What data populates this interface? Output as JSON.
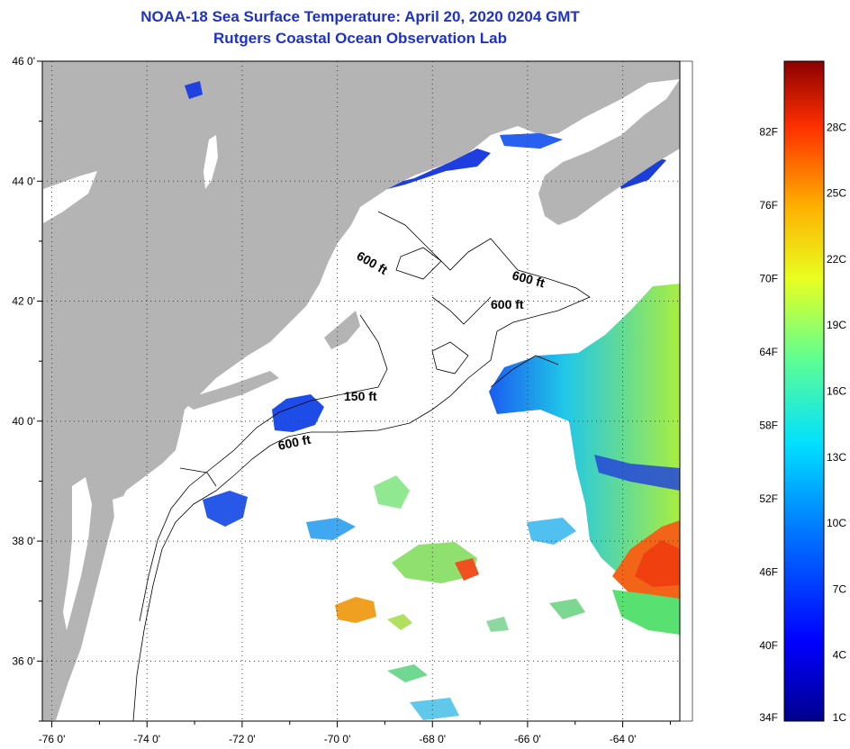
{
  "title": "NOAA-18 Sea Surface Temperature:  April 20, 2020 0204 GMT",
  "subtitle": "Rutgers Coastal Ocean Observation Lab",
  "lat_ticks": [
    "46 0'",
    "44 0'",
    "42 0'",
    "40 0'",
    "38 0'",
    "36 0'"
  ],
  "lat_values": [
    46,
    44,
    42,
    40,
    38,
    36
  ],
  "lon_ticks": [
    "-76 0'",
    "-74 0'",
    "-72 0'",
    "-70 0'",
    "-68 0'",
    "-66 0'",
    "-64 0'"
  ],
  "lon_values": [
    -76,
    -74,
    -72,
    -70,
    -68,
    -66,
    -64
  ],
  "map_extent": {
    "lon_min": -76.2,
    "lon_max": -62.8,
    "lat_min": 35.0,
    "lat_max": 46.0
  },
  "depth_labels": [
    "600 ft",
    "600 ft",
    "600 ft",
    "150 ft",
    "600 ft"
  ],
  "colorbar": {
    "fahrenheit_labels": [
      "82F",
      "76F",
      "70F",
      "64F",
      "58F",
      "52F",
      "46F",
      "40F",
      "34F"
    ],
    "celsius_labels": [
      "28C",
      "25C",
      "22C",
      "19C",
      "16C",
      "13C",
      "10C",
      "7C",
      "4C",
      "1C"
    ],
    "range_c": [
      1,
      31
    ]
  },
  "colors": {
    "land": "#b4b4b4",
    "title": "#1e32c8",
    "ocean_no_data": "#ffffff"
  }
}
